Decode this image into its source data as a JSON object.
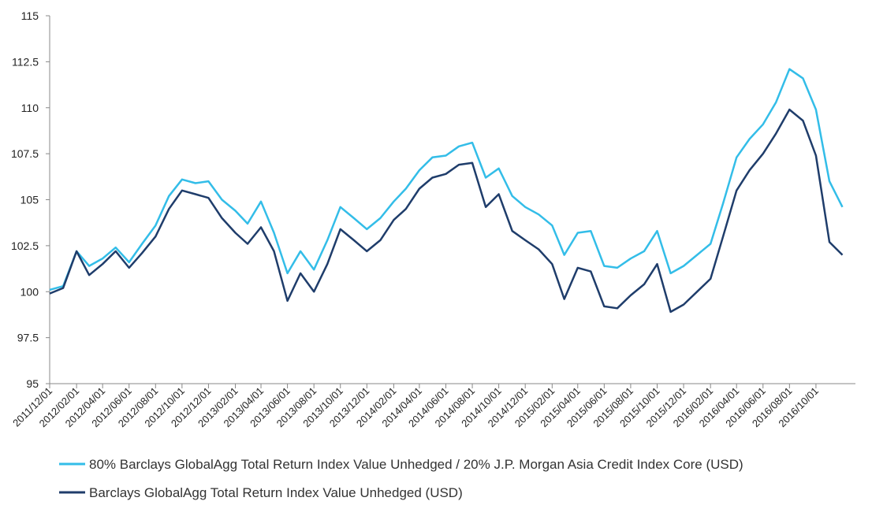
{
  "chart_data": {
    "type": "line",
    "title": "",
    "xlabel": "",
    "ylabel": "",
    "ylim": [
      95,
      115
    ],
    "y_ticks": [
      "95",
      "97.5",
      "100",
      "102.5",
      "105",
      "107.5",
      "110",
      "112.5",
      "115"
    ],
    "x_tick_labels": [
      "2011/12/01",
      "2012/02/01",
      "2012/04/01",
      "2012/06/01",
      "2012/08/01",
      "2012/10/01",
      "2012/12/01",
      "2013/02/01",
      "2013/04/01",
      "2013/06/01",
      "2013/08/01",
      "2013/10/01",
      "2013/12/01",
      "2014/02/01",
      "2014/04/01",
      "2014/06/01",
      "2014/08/01",
      "2014/10/01",
      "2014/12/01",
      "2015/02/01",
      "2015/04/01",
      "2015/06/01",
      "2015/08/01",
      "2015/10/01",
      "2015/12/01",
      "2016/02/01",
      "2016/04/01",
      "2016/06/01",
      "2016/08/01",
      "2016/10/01"
    ],
    "x": [
      "2011/12/01",
      "2012/01/01",
      "2012/02/01",
      "2012/03/01",
      "2012/04/01",
      "2012/05/01",
      "2012/06/01",
      "2012/07/01",
      "2012/08/01",
      "2012/09/01",
      "2012/10/01",
      "2012/11/01",
      "2012/12/01",
      "2013/01/01",
      "2013/02/01",
      "2013/03/01",
      "2013/04/01",
      "2013/05/01",
      "2013/06/01",
      "2013/07/01",
      "2013/08/01",
      "2013/09/01",
      "2013/10/01",
      "2013/11/01",
      "2013/12/01",
      "2014/01/01",
      "2014/02/01",
      "2014/03/01",
      "2014/04/01",
      "2014/05/01",
      "2014/06/01",
      "2014/07/01",
      "2014/08/01",
      "2014/09/01",
      "2014/10/01",
      "2014/11/01",
      "2014/12/01",
      "2015/01/01",
      "2015/02/01",
      "2015/03/01",
      "2015/04/01",
      "2015/05/01",
      "2015/06/01",
      "2015/07/01",
      "2015/08/01",
      "2015/09/01",
      "2015/10/01",
      "2015/11/01",
      "2015/12/01",
      "2016/01/01",
      "2016/02/01",
      "2016/03/01",
      "2016/04/01",
      "2016/05/01",
      "2016/06/01",
      "2016/07/01",
      "2016/08/01",
      "2016/09/01",
      "2016/10/01",
      "2016/11/01",
      "2016/12/01"
    ],
    "series": [
      {
        "name": "80% Barclays GlobalAgg Total Return Index Value Unhedged / 20% J.P. Morgan Asia Credit Index Core (USD)",
        "color": "#33bde8",
        "values": [
          100.1,
          100.3,
          102.2,
          101.4,
          101.8,
          102.4,
          101.6,
          102.6,
          103.6,
          105.2,
          106.1,
          105.9,
          106.0,
          105.0,
          104.4,
          103.7,
          104.9,
          103.2,
          101.0,
          102.2,
          101.2,
          102.8,
          104.6,
          104.0,
          103.4,
          104.0,
          104.9,
          105.6,
          106.6,
          107.3,
          107.4,
          107.9,
          108.1,
          106.2,
          106.7,
          105.2,
          104.6,
          104.2,
          103.6,
          102.0,
          103.2,
          103.3,
          101.4,
          101.3,
          101.8,
          102.2,
          103.3,
          101.0,
          101.4,
          102.0,
          102.6,
          104.8,
          107.3,
          108.3,
          109.1,
          110.3,
          112.1,
          111.6,
          109.9,
          106.0,
          104.6
        ]
      },
      {
        "name": "Barclays GlobalAgg Total Return Index Value Unhedged (USD)",
        "color": "#1f3d6b",
        "values": [
          99.9,
          100.2,
          102.2,
          100.9,
          101.5,
          102.2,
          101.3,
          102.1,
          103.0,
          104.5,
          105.5,
          105.3,
          105.1,
          104.0,
          103.2,
          102.6,
          103.5,
          102.2,
          99.5,
          101.0,
          100.0,
          101.5,
          103.4,
          102.8,
          102.2,
          102.8,
          103.9,
          104.5,
          105.6,
          106.2,
          106.4,
          106.9,
          107.0,
          104.6,
          105.3,
          103.3,
          102.8,
          102.3,
          101.5,
          99.6,
          101.3,
          101.1,
          99.2,
          99.1,
          99.8,
          100.4,
          101.5,
          98.9,
          99.3,
          100.0,
          100.7,
          103.0,
          105.5,
          106.6,
          107.5,
          108.6,
          109.9,
          109.3,
          107.4,
          102.7,
          102.0
        ]
      }
    ],
    "grid": false,
    "legend_position": "bottom-left"
  }
}
